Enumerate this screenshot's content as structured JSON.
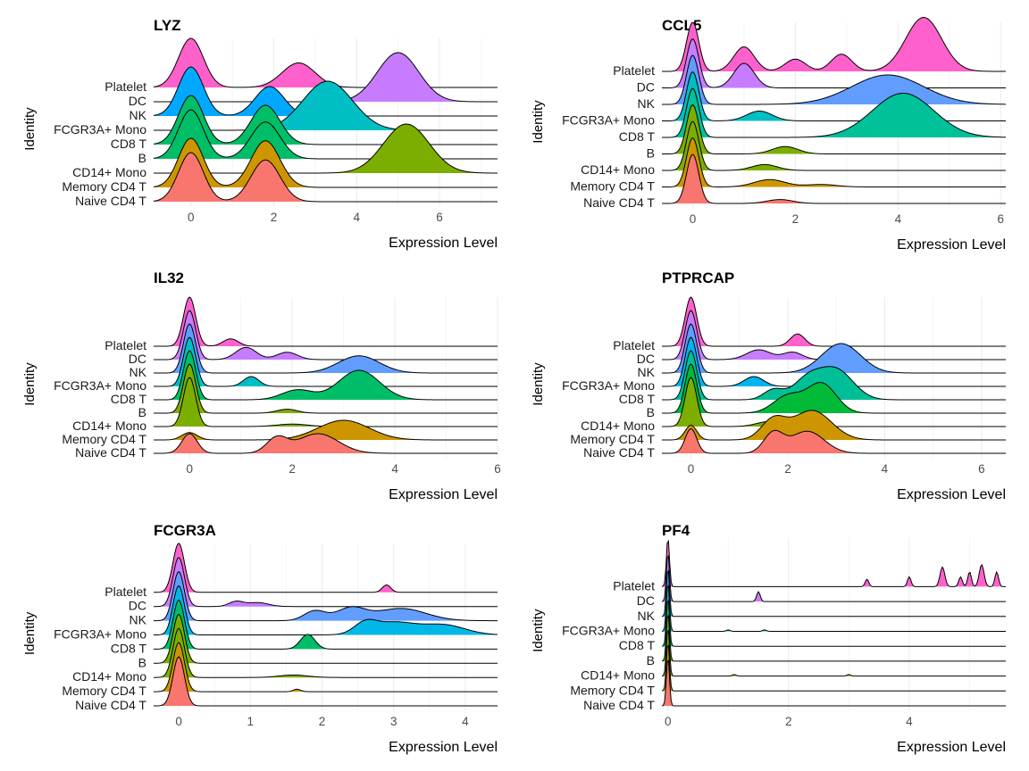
{
  "chart_data": [
    {
      "type": "ridgeline",
      "title": "LYZ",
      "xlabel": "Expression Level",
      "ylabel": "Identity",
      "xlim": [
        -0.9,
        7.4
      ],
      "xticks": [
        0,
        2,
        4,
        6
      ],
      "grid": true,
      "series": [
        {
          "name": "Naive CD4 T",
          "color": "#F8766D",
          "peaks": [
            [
              0,
              1.0,
              0.3
            ],
            [
              1.8,
              0.85,
              0.35
            ]
          ]
        },
        {
          "name": "Memory CD4 T",
          "color": "#CD9600",
          "peaks": [
            [
              0,
              1.0,
              0.3
            ],
            [
              1.8,
              0.95,
              0.35
            ]
          ]
        },
        {
          "name": "CD14+ Mono",
          "color": "#7CAE00",
          "peaks": [
            [
              5.2,
              1.0,
              0.55
            ]
          ]
        },
        {
          "name": "B",
          "color": "#00BE67",
          "peaks": [
            [
              0,
              1.0,
              0.3
            ],
            [
              1.8,
              0.75,
              0.35
            ]
          ]
        },
        {
          "name": "CD8 T",
          "color": "#00BE67",
          "peaks": [
            [
              0,
              1.0,
              0.3
            ],
            [
              1.8,
              0.8,
              0.35
            ]
          ]
        },
        {
          "name": "FCGR3A+ Mono",
          "color": "#00BFC4",
          "peaks": [
            [
              3.3,
              1.0,
              0.6
            ]
          ]
        },
        {
          "name": "NK",
          "color": "#00A9FF",
          "peaks": [
            [
              0,
              1.0,
              0.3
            ],
            [
              1.9,
              0.6,
              0.35
            ]
          ]
        },
        {
          "name": "DC",
          "color": "#C77CFF",
          "peaks": [
            [
              5.0,
              1.0,
              0.5
            ]
          ]
        },
        {
          "name": "Platelet",
          "color": "#FF61CC",
          "peaks": [
            [
              0,
              1.0,
              0.3
            ],
            [
              2.6,
              0.5,
              0.4
            ]
          ]
        }
      ]
    },
    {
      "type": "ridgeline",
      "title": "CCL5",
      "xlabel": "Expression Level",
      "ylabel": "Identity",
      "xlim": [
        -0.6,
        6.1
      ],
      "xticks": [
        0,
        2,
        4,
        6
      ],
      "grid": true,
      "series": [
        {
          "name": "Naive CD4 T",
          "color": "#F8766D",
          "peaks": [
            [
              0,
              1.0,
              0.12
            ],
            [
              1.7,
              0.08,
              0.25
            ]
          ]
        },
        {
          "name": "Memory CD4 T",
          "color": "#CD9600",
          "peaks": [
            [
              0,
              1.0,
              0.12
            ],
            [
              1.5,
              0.15,
              0.3
            ],
            [
              2.5,
              0.05,
              0.3
            ]
          ]
        },
        {
          "name": "CD14+ Mono",
          "color": "#7CAE00",
          "peaks": [
            [
              0,
              1.0,
              0.12
            ],
            [
              1.4,
              0.12,
              0.25
            ]
          ]
        },
        {
          "name": "B",
          "color": "#7CAE00",
          "peaks": [
            [
              0,
              1.0,
              0.12
            ],
            [
              1.8,
              0.15,
              0.25
            ]
          ]
        },
        {
          "name": "CD8 T",
          "color": "#00C19A",
          "peaks": [
            [
              0,
              1.0,
              0.12
            ],
            [
              4.1,
              0.9,
              0.6
            ]
          ]
        },
        {
          "name": "FCGR3A+ Mono",
          "color": "#00BFC4",
          "peaks": [
            [
              0,
              1.0,
              0.12
            ],
            [
              1.3,
              0.2,
              0.25
            ]
          ]
        },
        {
          "name": "NK",
          "color": "#619CFF",
          "peaks": [
            [
              0,
              1.0,
              0.12
            ],
            [
              3.8,
              0.6,
              0.7
            ]
          ]
        },
        {
          "name": "DC",
          "color": "#C77CFF",
          "peaks": [
            [
              0,
              1.0,
              0.12
            ],
            [
              1.0,
              0.5,
              0.2
            ]
          ]
        },
        {
          "name": "Platelet",
          "color": "#FF61CC",
          "peaks": [
            [
              0,
              1.0,
              0.12
            ],
            [
              1.0,
              0.5,
              0.2
            ],
            [
              2.0,
              0.25,
              0.2
            ],
            [
              2.9,
              0.35,
              0.2
            ],
            [
              4.5,
              1.1,
              0.35
            ]
          ]
        }
      ]
    },
    {
      "type": "ridgeline",
      "title": "IL32",
      "xlabel": "Expression Level",
      "ylabel": "Identity",
      "xlim": [
        -0.7,
        6.0
      ],
      "xticks": [
        0,
        2,
        4,
        6
      ],
      "grid": true,
      "series": [
        {
          "name": "Naive CD4 T",
          "color": "#F8766D",
          "peaks": [
            [
              0,
              0.4,
              0.15
            ],
            [
              1.7,
              0.3,
              0.2
            ],
            [
              2.5,
              0.4,
              0.4
            ]
          ]
        },
        {
          "name": "Memory CD4 T",
          "color": "#CD9600",
          "peaks": [
            [
              0,
              0.15,
              0.15
            ],
            [
              3.0,
              0.4,
              0.5
            ]
          ]
        },
        {
          "name": "CD14+ Mono",
          "color": "#7CAE00",
          "peaks": [
            [
              0,
              1.0,
              0.12
            ],
            [
              2.0,
              0.05,
              0.3
            ]
          ]
        },
        {
          "name": "B",
          "color": "#7CAE00",
          "peaks": [
            [
              0,
              1.0,
              0.12
            ],
            [
              1.9,
              0.08,
              0.2
            ]
          ]
        },
        {
          "name": "CD8 T",
          "color": "#00BE67",
          "peaks": [
            [
              0,
              1.0,
              0.12
            ],
            [
              2.1,
              0.2,
              0.3
            ],
            [
              3.3,
              0.6,
              0.4
            ]
          ]
        },
        {
          "name": "FCGR3A+ Mono",
          "color": "#00BFC4",
          "peaks": [
            [
              0,
              1.0,
              0.12
            ],
            [
              1.2,
              0.2,
              0.15
            ]
          ]
        },
        {
          "name": "NK",
          "color": "#619CFF",
          "peaks": [
            [
              0,
              1.0,
              0.12
            ],
            [
              3.3,
              0.35,
              0.4
            ]
          ]
        },
        {
          "name": "DC",
          "color": "#C77CFF",
          "peaks": [
            [
              0,
              1.0,
              0.12
            ],
            [
              1.1,
              0.25,
              0.2
            ],
            [
              1.9,
              0.15,
              0.2
            ]
          ]
        },
        {
          "name": "Platelet",
          "color": "#FF61CC",
          "peaks": [
            [
              0,
              1.0,
              0.12
            ],
            [
              0.8,
              0.15,
              0.15
            ]
          ]
        }
      ]
    },
    {
      "type": "ridgeline",
      "title": "PTPRCAP",
      "xlabel": "Expression Level",
      "ylabel": "Identity",
      "xlim": [
        -0.6,
        6.5
      ],
      "xticks": [
        0,
        2,
        4,
        6
      ],
      "grid": true,
      "series": [
        {
          "name": "Naive CD4 T",
          "color": "#F8766D",
          "peaks": [
            [
              0,
              0.5,
              0.12
            ],
            [
              1.7,
              0.4,
              0.2
            ],
            [
              2.4,
              0.45,
              0.35
            ]
          ]
        },
        {
          "name": "Memory CD4 T",
          "color": "#CD9600",
          "peaks": [
            [
              0,
              0.3,
              0.12
            ],
            [
              1.7,
              0.4,
              0.25
            ],
            [
              2.5,
              0.6,
              0.4
            ]
          ]
        },
        {
          "name": "CD14+ Mono",
          "color": "#7CAE00",
          "peaks": [
            [
              0,
              1.0,
              0.12
            ],
            [
              1.6,
              0.1,
              0.25
            ]
          ]
        },
        {
          "name": "B",
          "color": "#00BA38",
          "peaks": [
            [
              0,
              1.0,
              0.12
            ],
            [
              2.0,
              0.35,
              0.3
            ],
            [
              2.7,
              0.6,
              0.3
            ]
          ]
        },
        {
          "name": "CD8 T",
          "color": "#00BF96",
          "peaks": [
            [
              0,
              1.0,
              0.12
            ],
            [
              1.7,
              0.2,
              0.2
            ],
            [
              2.4,
              0.4,
              0.3
            ],
            [
              3.0,
              0.6,
              0.35
            ]
          ]
        },
        {
          "name": "FCGR3A+ Mono",
          "color": "#00B4EF",
          "peaks": [
            [
              0,
              1.0,
              0.12
            ],
            [
              1.3,
              0.2,
              0.2
            ]
          ]
        },
        {
          "name": "NK",
          "color": "#619CFF",
          "peaks": [
            [
              0,
              1.0,
              0.12
            ],
            [
              3.1,
              0.6,
              0.4
            ]
          ]
        },
        {
          "name": "DC",
          "color": "#C77CFF",
          "peaks": [
            [
              0,
              1.0,
              0.12
            ],
            [
              1.4,
              0.2,
              0.25
            ],
            [
              2.1,
              0.15,
              0.2
            ]
          ]
        },
        {
          "name": "Platelet",
          "color": "#FF61CC",
          "peaks": [
            [
              0,
              1.0,
              0.12
            ],
            [
              2.2,
              0.25,
              0.15
            ]
          ]
        }
      ]
    },
    {
      "type": "ridgeline",
      "title": "FCGR3A",
      "xlabel": "Expression Level",
      "ylabel": "Identity",
      "xlim": [
        -0.35,
        4.45
      ],
      "xticks": [
        0,
        1,
        2,
        3,
        4
      ],
      "grid": true,
      "series": [
        {
          "name": "Naive CD4 T",
          "color": "#F8766D",
          "peaks": [
            [
              0,
              1.0,
              0.08
            ]
          ]
        },
        {
          "name": "Memory CD4 T",
          "color": "#CD9600",
          "peaks": [
            [
              0,
              1.0,
              0.08
            ],
            [
              1.65,
              0.05,
              0.05
            ]
          ]
        },
        {
          "name": "CD14+ Mono",
          "color": "#7CAE00",
          "peaks": [
            [
              0,
              1.0,
              0.08
            ],
            [
              1.6,
              0.05,
              0.2
            ]
          ]
        },
        {
          "name": "B",
          "color": "#7CAE00",
          "peaks": [
            [
              0,
              1.0,
              0.08
            ]
          ]
        },
        {
          "name": "CD8 T",
          "color": "#00BE67",
          "peaks": [
            [
              0,
              1.0,
              0.08
            ],
            [
              1.8,
              0.3,
              0.1
            ]
          ]
        },
        {
          "name": "FCGR3A+ Mono",
          "color": "#00B8E7",
          "peaks": [
            [
              0,
              1.0,
              0.08
            ],
            [
              2.6,
              0.2,
              0.15
            ],
            [
              3.0,
              0.25,
              0.3
            ],
            [
              3.7,
              0.2,
              0.3
            ]
          ]
        },
        {
          "name": "NK",
          "color": "#619CFF",
          "peaks": [
            [
              0,
              1.0,
              0.08
            ],
            [
              1.9,
              0.2,
              0.15
            ],
            [
              2.4,
              0.25,
              0.2
            ],
            [
              3.1,
              0.25,
              0.35
            ]
          ]
        },
        {
          "name": "DC",
          "color": "#C77CFF",
          "peaks": [
            [
              0,
              1.0,
              0.08
            ],
            [
              0.8,
              0.1,
              0.1
            ],
            [
              1.1,
              0.08,
              0.15
            ]
          ]
        },
        {
          "name": "Platelet",
          "color": "#FF61CC",
          "peaks": [
            [
              0,
              1.0,
              0.08
            ],
            [
              2.9,
              0.15,
              0.06
            ]
          ]
        }
      ]
    },
    {
      "type": "ridgeline",
      "title": "PF4",
      "xlabel": "Expression Level",
      "ylabel": "Identity",
      "xlim": [
        -0.1,
        5.6
      ],
      "xticks": [
        0,
        2,
        4
      ],
      "grid": true,
      "series": [
        {
          "name": "Naive CD4 T",
          "color": "#F8766D",
          "peaks": [
            [
              0,
              1.0,
              0.025
            ]
          ]
        },
        {
          "name": "Memory CD4 T",
          "color": "#CD9600",
          "peaks": [
            [
              0,
              1.0,
              0.025
            ]
          ]
        },
        {
          "name": "CD14+ Mono",
          "color": "#7CAE00",
          "peaks": [
            [
              0,
              1.0,
              0.025
            ],
            [
              1.1,
              0.03,
              0.03
            ],
            [
              3.0,
              0.03,
              0.03
            ]
          ]
        },
        {
          "name": "B",
          "color": "#7CAE00",
          "peaks": [
            [
              0,
              1.0,
              0.025
            ]
          ]
        },
        {
          "name": "CD8 T",
          "color": "#00BE67",
          "peaks": [
            [
              0,
              1.0,
              0.025
            ]
          ]
        },
        {
          "name": "FCGR3A+ Mono",
          "color": "#00BFC4",
          "peaks": [
            [
              0,
              1.0,
              0.025
            ],
            [
              1.0,
              0.03,
              0.03
            ],
            [
              1.6,
              0.03,
              0.03
            ]
          ]
        },
        {
          "name": "NK",
          "color": "#00A9FF",
          "peaks": [
            [
              0,
              1.0,
              0.025
            ]
          ]
        },
        {
          "name": "DC",
          "color": "#C77CFF",
          "peaks": [
            [
              0,
              1.0,
              0.025
            ],
            [
              1.5,
              0.2,
              0.03
            ]
          ]
        },
        {
          "name": "Platelet",
          "color": "#FF61CC",
          "peaks": [
            [
              0,
              1.0,
              0.025
            ],
            [
              3.3,
              0.15,
              0.03
            ],
            [
              4.0,
              0.2,
              0.03
            ],
            [
              4.55,
              0.4,
              0.04
            ],
            [
              4.85,
              0.2,
              0.03
            ],
            [
              5.0,
              0.3,
              0.03
            ],
            [
              5.2,
              0.45,
              0.04
            ],
            [
              5.45,
              0.3,
              0.03
            ]
          ]
        }
      ]
    }
  ]
}
